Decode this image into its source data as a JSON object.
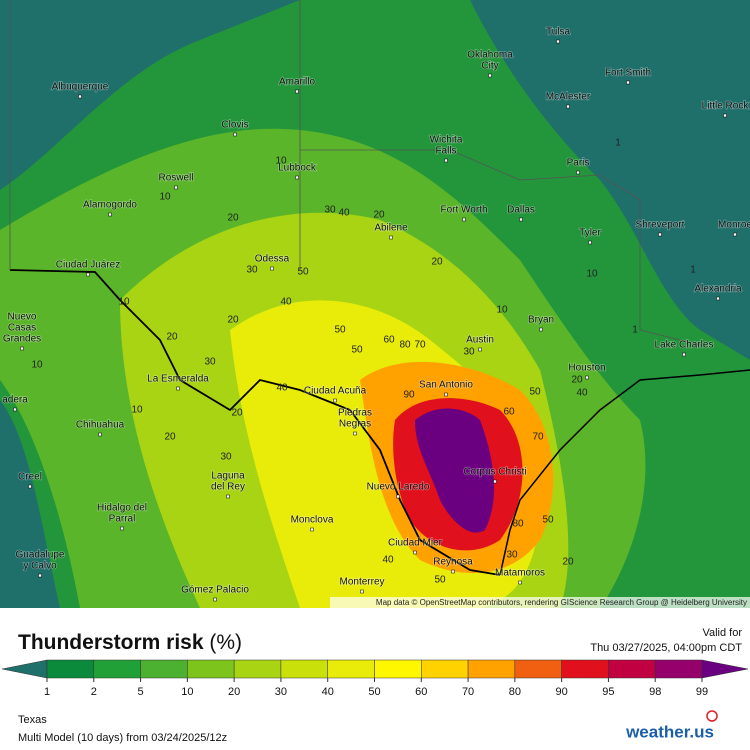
{
  "map": {
    "cities": [
      {
        "lines": [
          "Tulsa"
        ]
      },
      {
        "lines": [
          "Oklahoma",
          "City"
        ]
      },
      {
        "lines": [
          "Albuquerque"
        ]
      },
      {
        "lines": [
          "Amarillo"
        ]
      },
      {
        "lines": [
          "Fort Smith"
        ]
      },
      {
        "lines": [
          "McAlester"
        ]
      },
      {
        "lines": [
          "Little Rock"
        ]
      },
      {
        "lines": [
          "Clovis"
        ]
      },
      {
        "lines": [
          "Wichita",
          "Falls"
        ]
      },
      {
        "lines": [
          "Paris"
        ]
      },
      {
        "lines": [
          "Lubbock"
        ]
      },
      {
        "lines": [
          "Roswell"
        ]
      },
      {
        "lines": [
          "Alamogordo"
        ]
      },
      {
        "lines": [
          "Fort Worth"
        ]
      },
      {
        "lines": [
          "Dallas"
        ]
      },
      {
        "lines": [
          "Abilene"
        ]
      },
      {
        "lines": [
          "Shreveport"
        ]
      },
      {
        "lines": [
          "Monroe"
        ]
      },
      {
        "lines": [
          "Tyler"
        ]
      },
      {
        "lines": [
          "Odessa"
        ]
      },
      {
        "lines": [
          "Ciudad Juárez"
        ]
      },
      {
        "lines": [
          "Alexandria"
        ]
      },
      {
        "lines": [
          "Nuevo",
          "Casas",
          "Grandes"
        ]
      },
      {
        "lines": [
          "Bryan"
        ]
      },
      {
        "lines": [
          "Austin"
        ]
      },
      {
        "lines": [
          "Lake Charles"
        ]
      },
      {
        "lines": [
          "Houston"
        ]
      },
      {
        "lines": [
          "La Esmeralda"
        ]
      },
      {
        "lines": [
          "San Antonio"
        ]
      },
      {
        "lines": [
          "Ciudad Acuña"
        ]
      },
      {
        "lines": [
          "Piedras",
          "Negras"
        ]
      },
      {
        "lines": [
          "adera"
        ]
      },
      {
        "lines": [
          "Chihuahua"
        ]
      },
      {
        "lines": [
          "Corpus Christi"
        ]
      },
      {
        "lines": [
          "Laguna",
          "del Rey"
        ]
      },
      {
        "lines": [
          "Creel"
        ]
      },
      {
        "lines": [
          "Nuevo Laredo"
        ]
      },
      {
        "lines": [
          "Hidalgo del",
          "Parral"
        ]
      },
      {
        "lines": [
          "Monclova"
        ]
      },
      {
        "lines": [
          "Ciudad Mier"
        ]
      },
      {
        "lines": [
          "Guadalupe",
          "y Calvo"
        ]
      },
      {
        "lines": [
          "Reynosa"
        ]
      },
      {
        "lines": [
          "Matamoros"
        ]
      },
      {
        "lines": [
          "Monterrey"
        ]
      },
      {
        "lines": [
          "Gómez Palacio"
        ]
      }
    ],
    "contour_labels": [
      "10",
      "20",
      "30",
      "40",
      "20",
      "10",
      "50",
      "30",
      "40",
      "20",
      "10",
      "20",
      "30",
      "10",
      "20",
      "40",
      "50",
      "60",
      "80",
      "70",
      "50",
      "30",
      "20",
      "10",
      "30",
      "20",
      "50",
      "80",
      "90",
      "60",
      "70",
      "30",
      "20",
      "50",
      "40",
      "50",
      "40",
      "20",
      "10",
      "1",
      "1",
      "1",
      "10"
    ],
    "attribution": "Map data © OpenStreetMap contributors, rendering GIScience Research Group @ Heidelberg University"
  },
  "panel": {
    "title": "Thunderstorm risk",
    "unit": "(%)",
    "valid_label": "Valid for",
    "valid_time": "Thu 03/27/2025, 04:00pm CDT",
    "region": "Texas",
    "model": "Multi Model (10 days) from 03/24/2025/12z",
    "logo": "weather.us"
  },
  "legend": {
    "ticks": [
      1,
      2,
      5,
      10,
      20,
      30,
      40,
      50,
      60,
      70,
      80,
      90,
      95,
      98,
      99
    ],
    "colors": [
      "#1f6f6b",
      "#0a8a3a",
      "#21a038",
      "#4cb030",
      "#7dc41c",
      "#a8d414",
      "#c9e00a",
      "#e8ec08",
      "#fff700",
      "#ffd200",
      "#ffa200",
      "#f06010",
      "#e0101c",
      "#c00040",
      "#96006a",
      "#6a0080"
    ]
  }
}
